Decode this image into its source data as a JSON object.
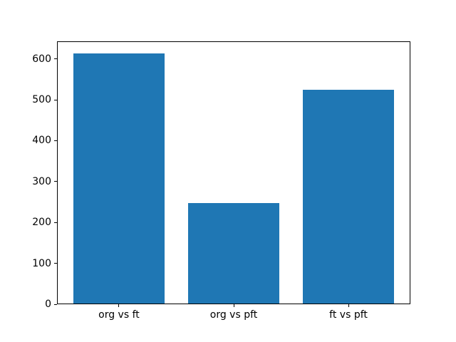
{
  "chart_data": {
    "type": "bar",
    "title": "",
    "categories": [
      "org vs ft",
      "org vs pft",
      "ft vs pft"
    ],
    "values": [
      613,
      247,
      525
    ],
    "xlabel": "",
    "ylabel": "",
    "yticks": [
      0,
      100,
      200,
      300,
      400,
      500,
      600
    ],
    "ylim": [
      0,
      643
    ],
    "xlim": [
      -0.54,
      2.54
    ],
    "bar_width": 0.8,
    "bar_color": "#1f77b4",
    "axis_color": "#000000",
    "text_color": "#000000",
    "background_color": "#ffffff",
    "grid": false,
    "legend": false
  }
}
